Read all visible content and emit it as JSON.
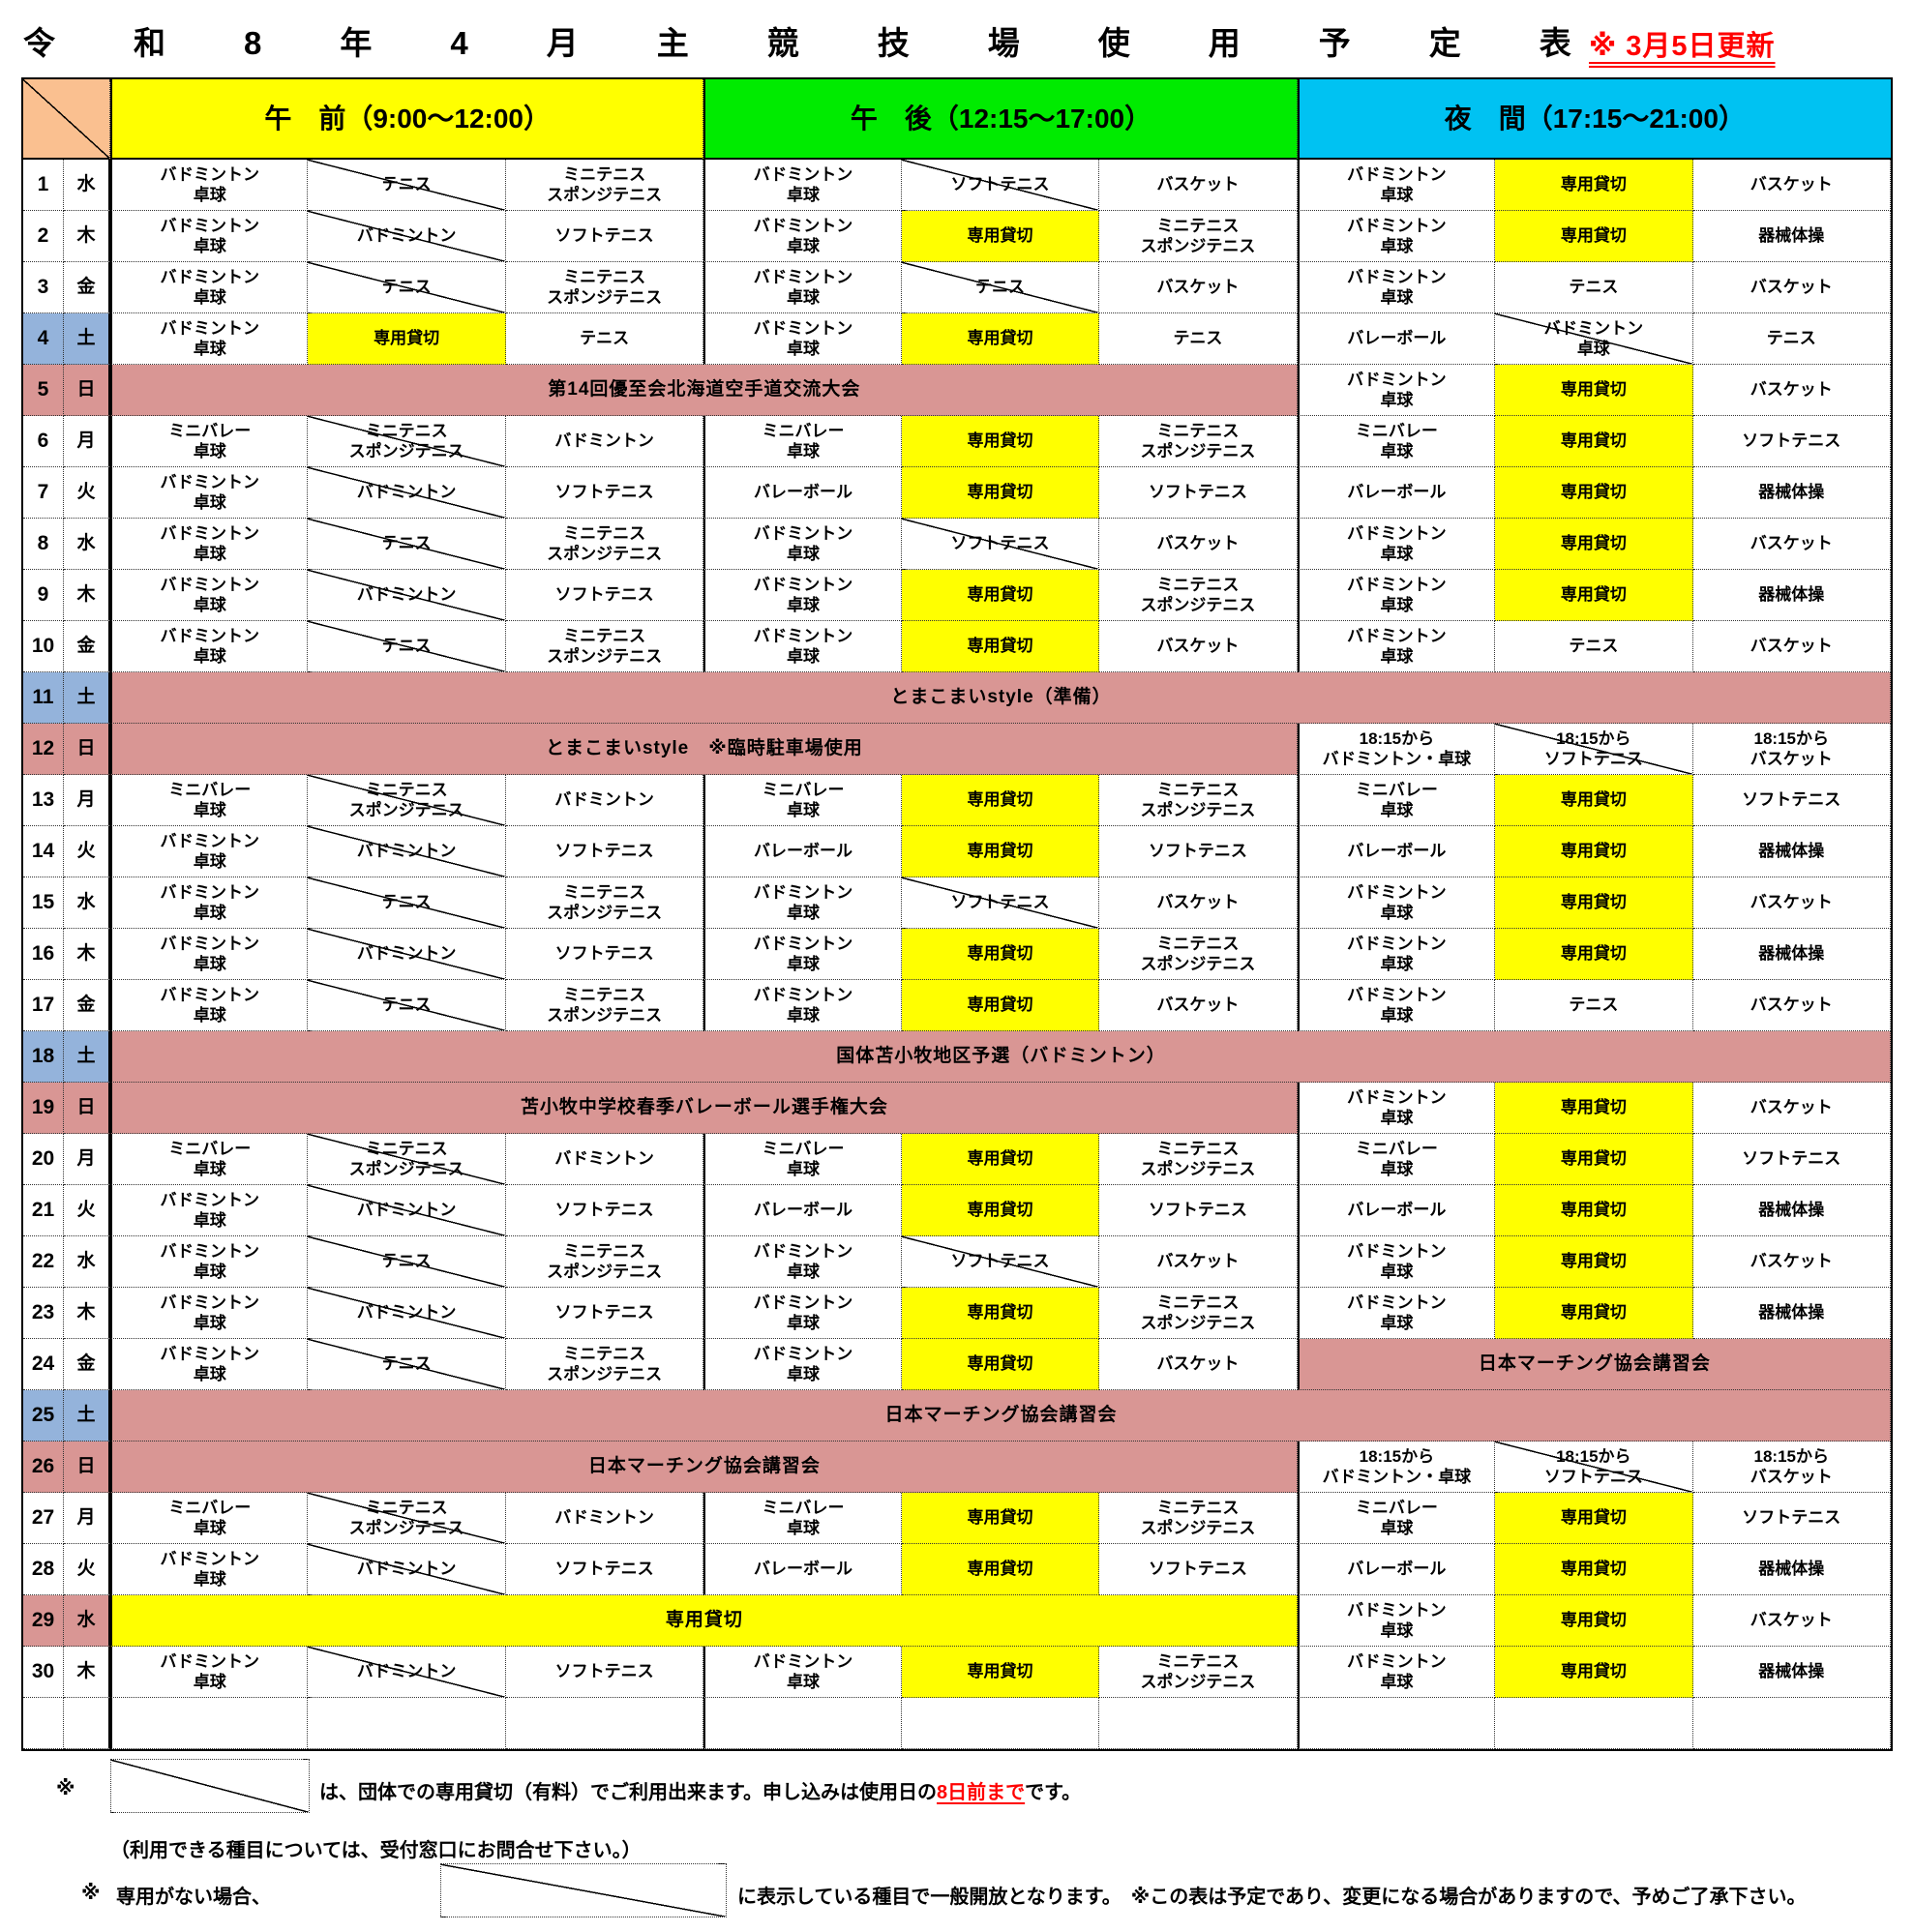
{
  "title": {
    "text": "令和8年4月主競技場使用予定表",
    "update_note": "※ 3月5日更新"
  },
  "header": {
    "sessions": [
      {
        "label": "午　前（9:00～12:00）",
        "color": "#FFFF00"
      },
      {
        "label": "午　後（12:15～17:00）",
        "color": "#00EB00"
      },
      {
        "label": "夜　間（17:15～21:00）",
        "color": "#00C2F2"
      }
    ]
  },
  "colors": {
    "morning_header": "#FFFF00",
    "afternoon_header": "#00EB00",
    "evening_header": "#00C2F2",
    "saturday_day": "#94B3DB",
    "sunday_holiday_day": "#D99694",
    "reserved_cell": "#FFFF00",
    "event_cell": "#D99694",
    "corner_cell": "#FAC090",
    "update_note_text": "#FF0000"
  },
  "rows": [
    {
      "day": "1",
      "wd": "水",
      "type": "n",
      "cells": [
        {
          "t": "バドミントン\n卓球"
        },
        {
          "t": "テニス",
          "d": 1
        },
        {
          "t": "ミニテニス\nスポンジテニス"
        },
        {
          "t": "バドミントン\n卓球"
        },
        {
          "t": "ソフトテニス",
          "d": 1
        },
        {
          "t": "バスケット"
        },
        {
          "t": "バドミントン\n卓球"
        },
        {
          "t": "専用貸切",
          "bg": "y"
        },
        {
          "t": "バスケット"
        }
      ]
    },
    {
      "day": "2",
      "wd": "木",
      "type": "n",
      "cells": [
        {
          "t": "バドミントン\n卓球"
        },
        {
          "t": "バドミントン",
          "d": 1
        },
        {
          "t": "ソフトテニス"
        },
        {
          "t": "バドミントン\n卓球"
        },
        {
          "t": "専用貸切",
          "bg": "y"
        },
        {
          "t": "ミニテニス\nスポンジテニス"
        },
        {
          "t": "バドミントン\n卓球"
        },
        {
          "t": "専用貸切",
          "bg": "y"
        },
        {
          "t": "器械体操"
        }
      ]
    },
    {
      "day": "3",
      "wd": "金",
      "type": "n",
      "cells": [
        {
          "t": "バドミントン\n卓球"
        },
        {
          "t": "テニス",
          "d": 1
        },
        {
          "t": "ミニテニス\nスポンジテニス"
        },
        {
          "t": "バドミントン\n卓球"
        },
        {
          "t": "テニス",
          "d": 1
        },
        {
          "t": "バスケット"
        },
        {
          "t": "バドミントン\n卓球"
        },
        {
          "t": "テニス"
        },
        {
          "t": "バスケット"
        }
      ]
    },
    {
      "day": "4",
      "wd": "土",
      "type": "sat",
      "cells": [
        {
          "t": "バドミントン\n卓球"
        },
        {
          "t": "専用貸切",
          "bg": "y"
        },
        {
          "t": "テニス"
        },
        {
          "t": "バドミントン\n卓球"
        },
        {
          "t": "専用貸切",
          "bg": "y"
        },
        {
          "t": "テニス"
        },
        {
          "t": "バレーボール"
        },
        {
          "t": "バドミントン\n卓球",
          "d": 1
        },
        {
          "t": "テニス"
        }
      ]
    },
    {
      "day": "5",
      "wd": "日",
      "type": "sun",
      "cells": [
        {
          "t": "第14回優至会北海道空手道交流大会",
          "bg": "p",
          "s": 6
        },
        {
          "t": "バドミントン\n卓球"
        },
        {
          "t": "専用貸切",
          "bg": "y"
        },
        {
          "t": "バスケット"
        }
      ]
    },
    {
      "day": "6",
      "wd": "月",
      "type": "n",
      "cells": [
        {
          "t": "ミニバレー\n卓球"
        },
        {
          "t": "ミニテニス\nスポンジテニス",
          "d": 1
        },
        {
          "t": "バドミントン"
        },
        {
          "t": "ミニバレー\n卓球"
        },
        {
          "t": "専用貸切",
          "bg": "y"
        },
        {
          "t": "ミニテニス\nスポンジテニス"
        },
        {
          "t": "ミニバレー\n卓球"
        },
        {
          "t": "専用貸切",
          "bg": "y"
        },
        {
          "t": "ソフトテニス"
        }
      ]
    },
    {
      "day": "7",
      "wd": "火",
      "type": "n",
      "cells": [
        {
          "t": "バドミントン\n卓球"
        },
        {
          "t": "バドミントン",
          "d": 1
        },
        {
          "t": "ソフトテニス"
        },
        {
          "t": "バレーボール"
        },
        {
          "t": "専用貸切",
          "bg": "y"
        },
        {
          "t": "ソフトテニス"
        },
        {
          "t": "バレーボール"
        },
        {
          "t": "専用貸切",
          "bg": "y"
        },
        {
          "t": "器械体操"
        }
      ]
    },
    {
      "day": "8",
      "wd": "水",
      "type": "n",
      "cells": [
        {
          "t": "バドミントン\n卓球"
        },
        {
          "t": "テニス",
          "d": 1
        },
        {
          "t": "ミニテニス\nスポンジテニス"
        },
        {
          "t": "バドミントン\n卓球"
        },
        {
          "t": "ソフトテニス",
          "d": 1
        },
        {
          "t": "バスケット"
        },
        {
          "t": "バドミントン\n卓球"
        },
        {
          "t": "専用貸切",
          "bg": "y"
        },
        {
          "t": "バスケット"
        }
      ]
    },
    {
      "day": "9",
      "wd": "木",
      "type": "n",
      "cells": [
        {
          "t": "バドミントン\n卓球"
        },
        {
          "t": "バドミントン",
          "d": 1
        },
        {
          "t": "ソフトテニス"
        },
        {
          "t": "バドミントン\n卓球"
        },
        {
          "t": "専用貸切",
          "bg": "y"
        },
        {
          "t": "ミニテニス\nスポンジテニス"
        },
        {
          "t": "バドミントン\n卓球"
        },
        {
          "t": "専用貸切",
          "bg": "y"
        },
        {
          "t": "器械体操"
        }
      ]
    },
    {
      "day": "10",
      "wd": "金",
      "type": "n",
      "cells": [
        {
          "t": "バドミントン\n卓球"
        },
        {
          "t": "テニス",
          "d": 1
        },
        {
          "t": "ミニテニス\nスポンジテニス"
        },
        {
          "t": "バドミントン\n卓球"
        },
        {
          "t": "専用貸切",
          "bg": "y"
        },
        {
          "t": "バスケット"
        },
        {
          "t": "バドミントン\n卓球"
        },
        {
          "t": "テニス"
        },
        {
          "t": "バスケット"
        }
      ]
    },
    {
      "day": "11",
      "wd": "土",
      "type": "sat",
      "cells": [
        {
          "t": "とまこまいstyle（準備）",
          "bg": "p",
          "s": 9
        }
      ]
    },
    {
      "day": "12",
      "wd": "日",
      "type": "sun",
      "cells": [
        {
          "t": "とまこまいstyle　※臨時駐車場使用",
          "bg": "p",
          "s": 6
        },
        {
          "t": "18:15から\nバドミントン・卓球"
        },
        {
          "t": "18:15から\nソフトテニス",
          "d": 1
        },
        {
          "t": "18:15から\nバスケット"
        }
      ]
    },
    {
      "day": "13",
      "wd": "月",
      "type": "n",
      "cells": [
        {
          "t": "ミニバレー\n卓球"
        },
        {
          "t": "ミニテニス\nスポンジテニス",
          "d": 1
        },
        {
          "t": "バドミントン"
        },
        {
          "t": "ミニバレー\n卓球"
        },
        {
          "t": "専用貸切",
          "bg": "y"
        },
        {
          "t": "ミニテニス\nスポンジテニス"
        },
        {
          "t": "ミニバレー\n卓球"
        },
        {
          "t": "専用貸切",
          "bg": "y"
        },
        {
          "t": "ソフトテニス"
        }
      ]
    },
    {
      "day": "14",
      "wd": "火",
      "type": "n",
      "cells": [
        {
          "t": "バドミントン\n卓球"
        },
        {
          "t": "バドミントン",
          "d": 1
        },
        {
          "t": "ソフトテニス"
        },
        {
          "t": "バレーボール"
        },
        {
          "t": "専用貸切",
          "bg": "y"
        },
        {
          "t": "ソフトテニス"
        },
        {
          "t": "バレーボール"
        },
        {
          "t": "専用貸切",
          "bg": "y"
        },
        {
          "t": "器械体操"
        }
      ]
    },
    {
      "day": "15",
      "wd": "水",
      "type": "n",
      "cells": [
        {
          "t": "バドミントン\n卓球"
        },
        {
          "t": "テニス",
          "d": 1
        },
        {
          "t": "ミニテニス\nスポンジテニス"
        },
        {
          "t": "バドミントン\n卓球"
        },
        {
          "t": "ソフトテニス",
          "d": 1
        },
        {
          "t": "バスケット"
        },
        {
          "t": "バドミントン\n卓球"
        },
        {
          "t": "専用貸切",
          "bg": "y"
        },
        {
          "t": "バスケット"
        }
      ]
    },
    {
      "day": "16",
      "wd": "木",
      "type": "n",
      "cells": [
        {
          "t": "バドミントン\n卓球"
        },
        {
          "t": "バドミントン",
          "d": 1
        },
        {
          "t": "ソフトテニス"
        },
        {
          "t": "バドミントン\n卓球"
        },
        {
          "t": "専用貸切",
          "bg": "y"
        },
        {
          "t": "ミニテニス\nスポンジテニス"
        },
        {
          "t": "バドミントン\n卓球"
        },
        {
          "t": "専用貸切",
          "bg": "y"
        },
        {
          "t": "器械体操"
        }
      ]
    },
    {
      "day": "17",
      "wd": "金",
      "type": "n",
      "cells": [
        {
          "t": "バドミントン\n卓球"
        },
        {
          "t": "テニス",
          "d": 1
        },
        {
          "t": "ミニテニス\nスポンジテニス"
        },
        {
          "t": "バドミントン\n卓球"
        },
        {
          "t": "専用貸切",
          "bg": "y"
        },
        {
          "t": "バスケット"
        },
        {
          "t": "バドミントン\n卓球"
        },
        {
          "t": "テニス"
        },
        {
          "t": "バスケット"
        }
      ]
    },
    {
      "day": "18",
      "wd": "土",
      "type": "sat",
      "cells": [
        {
          "t": "国体苫小牧地区予選（バドミントン）",
          "bg": "p",
          "s": 9
        }
      ]
    },
    {
      "day": "19",
      "wd": "日",
      "type": "sun",
      "cells": [
        {
          "t": "苫小牧中学校春季バレーボール選手権大会",
          "bg": "p",
          "s": 6
        },
        {
          "t": "バドミントン\n卓球"
        },
        {
          "t": "専用貸切",
          "bg": "y"
        },
        {
          "t": "バスケット"
        }
      ]
    },
    {
      "day": "20",
      "wd": "月",
      "type": "n",
      "cells": [
        {
          "t": "ミニバレー\n卓球"
        },
        {
          "t": "ミニテニス\nスポンジテニス",
          "d": 1
        },
        {
          "t": "バドミントン"
        },
        {
          "t": "ミニバレー\n卓球"
        },
        {
          "t": "専用貸切",
          "bg": "y"
        },
        {
          "t": "ミニテニス\nスポンジテニス"
        },
        {
          "t": "ミニバレー\n卓球"
        },
        {
          "t": "専用貸切",
          "bg": "y"
        },
        {
          "t": "ソフトテニス"
        }
      ]
    },
    {
      "day": "21",
      "wd": "火",
      "type": "n",
      "cells": [
        {
          "t": "バドミントン\n卓球"
        },
        {
          "t": "バドミントン",
          "d": 1
        },
        {
          "t": "ソフトテニス"
        },
        {
          "t": "バレーボール"
        },
        {
          "t": "専用貸切",
          "bg": "y"
        },
        {
          "t": "ソフトテニス"
        },
        {
          "t": "バレーボール"
        },
        {
          "t": "専用貸切",
          "bg": "y"
        },
        {
          "t": "器械体操"
        }
      ]
    },
    {
      "day": "22",
      "wd": "水",
      "type": "n",
      "cells": [
        {
          "t": "バドミントン\n卓球"
        },
        {
          "t": "テニス",
          "d": 1
        },
        {
          "t": "ミニテニス\nスポンジテニス"
        },
        {
          "t": "バドミントン\n卓球"
        },
        {
          "t": "ソフトテニス",
          "d": 1
        },
        {
          "t": "バスケット"
        },
        {
          "t": "バドミントン\n卓球"
        },
        {
          "t": "専用貸切",
          "bg": "y"
        },
        {
          "t": "バスケット"
        }
      ]
    },
    {
      "day": "23",
      "wd": "木",
      "type": "n",
      "cells": [
        {
          "t": "バドミントン\n卓球"
        },
        {
          "t": "バドミントン",
          "d": 1
        },
        {
          "t": "ソフトテニス"
        },
        {
          "t": "バドミントン\n卓球"
        },
        {
          "t": "専用貸切",
          "bg": "y"
        },
        {
          "t": "ミニテニス\nスポンジテニス"
        },
        {
          "t": "バドミントン\n卓球"
        },
        {
          "t": "専用貸切",
          "bg": "y"
        },
        {
          "t": "器械体操"
        }
      ]
    },
    {
      "day": "24",
      "wd": "金",
      "type": "n",
      "cells": [
        {
          "t": "バドミントン\n卓球"
        },
        {
          "t": "テニス",
          "d": 1
        },
        {
          "t": "ミニテニス\nスポンジテニス"
        },
        {
          "t": "バドミントン\n卓球"
        },
        {
          "t": "専用貸切",
          "bg": "y"
        },
        {
          "t": "バスケット"
        },
        {
          "t": "日本マーチング協会講習会",
          "bg": "p",
          "s": 3
        }
      ]
    },
    {
      "day": "25",
      "wd": "土",
      "type": "sat",
      "cells": [
        {
          "t": "日本マーチング協会講習会",
          "bg": "p",
          "s": 9
        }
      ]
    },
    {
      "day": "26",
      "wd": "日",
      "type": "sun",
      "cells": [
        {
          "t": "日本マーチング協会講習会",
          "bg": "p",
          "s": 6
        },
        {
          "t": "18:15から\nバドミントン・卓球"
        },
        {
          "t": "18:15から\nソフトテニス",
          "d": 1
        },
        {
          "t": "18:15から\nバスケット"
        }
      ]
    },
    {
      "day": "27",
      "wd": "月",
      "type": "n",
      "cells": [
        {
          "t": "ミニバレー\n卓球"
        },
        {
          "t": "ミニテニス\nスポンジテニス",
          "d": 1
        },
        {
          "t": "バドミントン"
        },
        {
          "t": "ミニバレー\n卓球"
        },
        {
          "t": "専用貸切",
          "bg": "y"
        },
        {
          "t": "ミニテニス\nスポンジテニス"
        },
        {
          "t": "ミニバレー\n卓球"
        },
        {
          "t": "専用貸切",
          "bg": "y"
        },
        {
          "t": "ソフトテニス"
        }
      ]
    },
    {
      "day": "28",
      "wd": "火",
      "type": "n",
      "cells": [
        {
          "t": "バドミントン\n卓球"
        },
        {
          "t": "バドミントン",
          "d": 1
        },
        {
          "t": "ソフトテニス"
        },
        {
          "t": "バレーボール"
        },
        {
          "t": "専用貸切",
          "bg": "y"
        },
        {
          "t": "ソフトテニス"
        },
        {
          "t": "バレーボール"
        },
        {
          "t": "専用貸切",
          "bg": "y"
        },
        {
          "t": "器械体操"
        }
      ]
    },
    {
      "day": "29",
      "wd": "水",
      "type": "hol",
      "cells": [
        {
          "t": "専用貸切",
          "bg": "y",
          "s": 6
        },
        {
          "t": "バドミントン\n卓球"
        },
        {
          "t": "専用貸切",
          "bg": "y"
        },
        {
          "t": "バスケット"
        }
      ]
    },
    {
      "day": "30",
      "wd": "木",
      "type": "n",
      "cells": [
        {
          "t": "バドミントン\n卓球"
        },
        {
          "t": "バドミントン",
          "d": 1
        },
        {
          "t": "ソフトテニス"
        },
        {
          "t": "バドミントン\n卓球"
        },
        {
          "t": "専用貸切",
          "bg": "y"
        },
        {
          "t": "ミニテニス\nスポンジテニス"
        },
        {
          "t": "バドミントン\n卓球"
        },
        {
          "t": "専用貸切",
          "bg": "y"
        },
        {
          "t": "器械体操"
        }
      ]
    },
    {
      "day": "",
      "wd": "",
      "type": "n",
      "cells": [
        {
          "t": ""
        },
        {
          "t": ""
        },
        {
          "t": ""
        },
        {
          "t": ""
        },
        {
          "t": ""
        },
        {
          "t": ""
        },
        {
          "t": ""
        },
        {
          "t": ""
        },
        {
          "t": ""
        }
      ]
    }
  ],
  "footer": {
    "note1_mark": "※",
    "note1_text": "は、団体での専用貸切（有料）でご利用出来ます。申し込みは使用日の",
    "note1_red": "8日前まで",
    "note1_tail": "です。",
    "note2": "（利用できる種目については、受付窓口にお問合せ下さい。）",
    "note3_mark": "※",
    "note3_lead": "専用がない場合、",
    "note3_text": "に表示している種目で一般開放となります。　※この表は予定であり、変更になる場合がありますので、予めご了承下さい。"
  }
}
